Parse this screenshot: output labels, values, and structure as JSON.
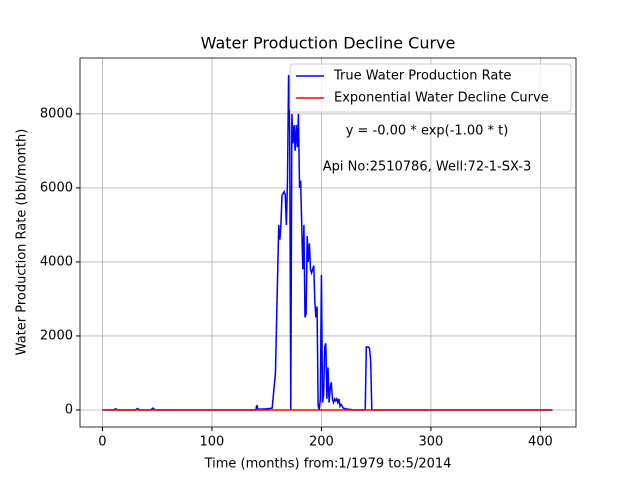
{
  "chart_data": {
    "type": "line",
    "title": "Water Production Decline Curve",
    "xlabel": "Time (months) from:1/1979 to:5/2014",
    "ylabel": "Water Production Rate (bbl/month)",
    "xlim": [
      -20.5,
      432.5
    ],
    "ylim": [
      -460,
      9510
    ],
    "xticks": [
      0,
      100,
      200,
      300,
      400
    ],
    "yticks": [
      0,
      2000,
      4000,
      6000,
      8000
    ],
    "grid": true,
    "legend": "upper right",
    "annotations": [
      "y = -0.00 * exp(-1.00 * t)",
      "Api No:2510786, Well:72-1-SX-3"
    ],
    "series": [
      {
        "name": "True Water Production Rate",
        "color": "#0000ff",
        "x": [
          0,
          10,
          12,
          14,
          30,
          32,
          34,
          44,
          46,
          48,
          140,
          141,
          142,
          150,
          155,
          158,
          161,
          162,
          163,
          164,
          166,
          167,
          168,
          169,
          170,
          171,
          172,
          173,
          174,
          175,
          176,
          177,
          178,
          179,
          180,
          181,
          182,
          183,
          184,
          185,
          186,
          187,
          188,
          189,
          190,
          191,
          192,
          193,
          194,
          195,
          196,
          197,
          198,
          199,
          200,
          201,
          202,
          203,
          204,
          205,
          206,
          207,
          208,
          209,
          210,
          211,
          212,
          213,
          214,
          215,
          216,
          217,
          218,
          220,
          222,
          230,
          240,
          241,
          243,
          244,
          245,
          246,
          250,
          411
        ],
        "values": [
          0,
          0,
          30,
          0,
          0,
          40,
          0,
          0,
          50,
          0,
          0,
          130,
          20,
          30,
          50,
          1000,
          5000,
          4600,
          5000,
          5800,
          5900,
          5800,
          5000,
          6200,
          9050,
          7500,
          0,
          8000,
          7200,
          7700,
          7000,
          7700,
          7100,
          8000,
          6000,
          6200,
          5000,
          3800,
          5000,
          2500,
          2600,
          4700,
          4000,
          4500,
          3800,
          3700,
          3800,
          3900,
          2900,
          2500,
          2800,
          100,
          0,
          300,
          3650,
          200,
          400,
          1700,
          1800,
          300,
          1150,
          200,
          600,
          750,
          300,
          200,
          300,
          250,
          300,
          200,
          300,
          100,
          150,
          50,
          30,
          0,
          0,
          1700,
          1700,
          1650,
          1300,
          0,
          0,
          0
        ]
      },
      {
        "name": "Exponential Water Decline Curve",
        "color": "#ff0000",
        "x": [
          0,
          411
        ],
        "values": [
          0,
          0
        ]
      }
    ]
  }
}
